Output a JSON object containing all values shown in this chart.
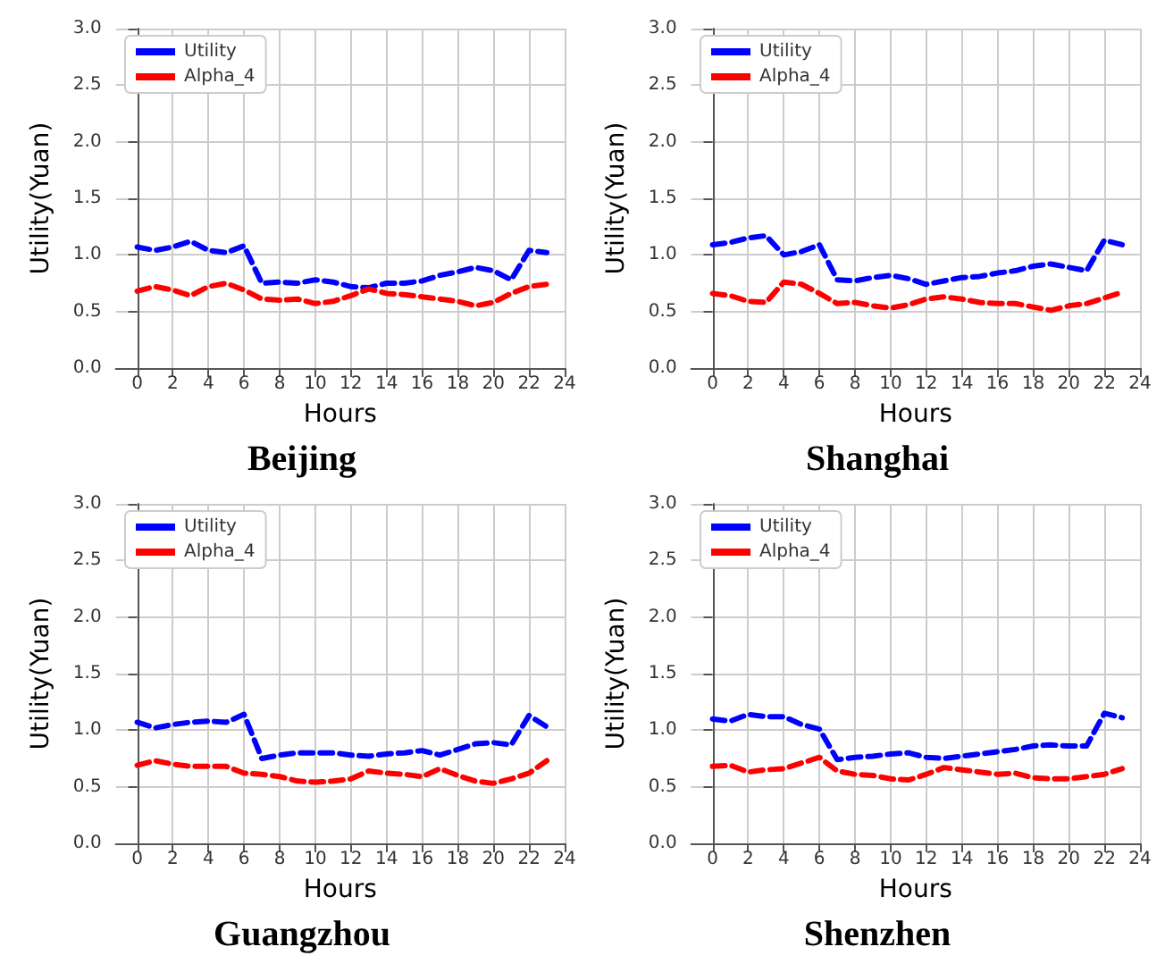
{
  "chart_data": [
    {
      "type": "line",
      "title": "Beijing",
      "xlabel": "Hours",
      "ylabel": "Utility(Yuan)",
      "x": [
        0,
        1,
        2,
        3,
        4,
        5,
        6,
        7,
        8,
        9,
        10,
        11,
        12,
        13,
        14,
        15,
        16,
        17,
        18,
        19,
        20,
        21,
        22,
        23
      ],
      "xlim": [
        -1.2,
        24
      ],
      "xticks": [
        0,
        2,
        4,
        6,
        8,
        10,
        12,
        14,
        16,
        18,
        20,
        22,
        24
      ],
      "ylim": [
        0,
        3
      ],
      "yticks": [
        {
          "value": 0,
          "label": "0.0"
        },
        {
          "value": 0.5,
          "label": "0.5"
        },
        {
          "value": 1,
          "label": "1.0"
        },
        {
          "value": 1.5,
          "label": "1.5"
        },
        {
          "value": 2,
          "label": "2.0"
        },
        {
          "value": 2.5,
          "label": "2.5"
        },
        {
          "value": 3,
          "label": "3.0"
        }
      ],
      "grid": true,
      "legend": "top left",
      "line_style": "dashed",
      "marker": "none",
      "series": [
        {
          "name": "Utility",
          "color": "#0000ff",
          "values": [
            1.07,
            1.04,
            1.07,
            1.12,
            1.04,
            1.02,
            1.08,
            0.75,
            0.76,
            0.75,
            0.78,
            0.76,
            0.72,
            0.71,
            0.75,
            0.75,
            0.77,
            0.82,
            0.85,
            0.89,
            0.86,
            0.78,
            1.04,
            1.02
          ]
        },
        {
          "name": "Alpha_4",
          "color": "#ff0000",
          "values": [
            0.68,
            0.72,
            0.69,
            0.64,
            0.72,
            0.75,
            0.69,
            0.61,
            0.6,
            0.61,
            0.57,
            0.59,
            0.64,
            0.7,
            0.66,
            0.65,
            0.63,
            0.61,
            0.59,
            0.55,
            0.58,
            0.66,
            0.72,
            0.74
          ]
        }
      ]
    },
    {
      "type": "line",
      "title": "Shanghai",
      "xlabel": "Hours",
      "ylabel": "Utility(Yuan)",
      "x": [
        0,
        1,
        2,
        3,
        4,
        5,
        6,
        7,
        8,
        9,
        10,
        11,
        12,
        13,
        14,
        15,
        16,
        17,
        18,
        19,
        20,
        21,
        22,
        23
      ],
      "xlim": [
        -1.2,
        24
      ],
      "xticks": [
        0,
        2,
        4,
        6,
        8,
        10,
        12,
        14,
        16,
        18,
        20,
        22,
        24
      ],
      "ylim": [
        0,
        3
      ],
      "yticks": [
        {
          "value": 0,
          "label": "0.0"
        },
        {
          "value": 0.5,
          "label": "0.5"
        },
        {
          "value": 1,
          "label": "1.0"
        },
        {
          "value": 1.5,
          "label": "1.5"
        },
        {
          "value": 2,
          "label": "2.0"
        },
        {
          "value": 2.5,
          "label": "2.5"
        },
        {
          "value": 3,
          "label": "3.0"
        }
      ],
      "grid": true,
      "legend": "top left",
      "line_style": "dashed",
      "marker": "none",
      "series": [
        {
          "name": "Utility",
          "color": "#0000ff",
          "values": [
            1.09,
            1.11,
            1.15,
            1.17,
            1.0,
            1.03,
            1.09,
            0.78,
            0.77,
            0.8,
            0.82,
            0.79,
            0.74,
            0.77,
            0.8,
            0.81,
            0.84,
            0.86,
            0.9,
            0.92,
            0.89,
            0.86,
            1.13,
            1.09
          ]
        },
        {
          "name": "Alpha_4",
          "color": "#ff0000",
          "values": [
            0.66,
            0.64,
            0.59,
            0.58,
            0.76,
            0.74,
            0.66,
            0.57,
            0.58,
            0.55,
            0.53,
            0.56,
            0.61,
            0.63,
            0.61,
            0.58,
            0.57,
            0.57,
            0.54,
            0.51,
            0.55,
            0.57,
            0.62,
            0.67
          ]
        }
      ]
    },
    {
      "type": "line",
      "title": "Guangzhou",
      "xlabel": "Hours",
      "ylabel": "Utility(Yuan)",
      "x": [
        0,
        1,
        2,
        3,
        4,
        5,
        6,
        7,
        8,
        9,
        10,
        11,
        12,
        13,
        14,
        15,
        16,
        17,
        18,
        19,
        20,
        21,
        22,
        23
      ],
      "xlim": [
        -1.2,
        24
      ],
      "xticks": [
        0,
        2,
        4,
        6,
        8,
        10,
        12,
        14,
        16,
        18,
        20,
        22,
        24
      ],
      "ylim": [
        0,
        3
      ],
      "yticks": [
        {
          "value": 0,
          "label": "0.0"
        },
        {
          "value": 0.5,
          "label": "0.5"
        },
        {
          "value": 1,
          "label": "1.0"
        },
        {
          "value": 1.5,
          "label": "1.5"
        },
        {
          "value": 2,
          "label": "2.0"
        },
        {
          "value": 2.5,
          "label": "2.5"
        },
        {
          "value": 3,
          "label": "3.0"
        }
      ],
      "grid": true,
      "legend": "top left",
      "line_style": "dashed",
      "marker": "none",
      "series": [
        {
          "name": "Utility",
          "color": "#0000ff",
          "values": [
            1.07,
            1.02,
            1.05,
            1.07,
            1.08,
            1.07,
            1.14,
            0.75,
            0.78,
            0.8,
            0.8,
            0.8,
            0.78,
            0.77,
            0.79,
            0.8,
            0.82,
            0.78,
            0.83,
            0.88,
            0.89,
            0.87,
            1.13,
            1.03
          ]
        },
        {
          "name": "Alpha_4",
          "color": "#ff0000",
          "values": [
            0.69,
            0.73,
            0.7,
            0.68,
            0.68,
            0.68,
            0.62,
            0.61,
            0.59,
            0.55,
            0.54,
            0.55,
            0.57,
            0.64,
            0.62,
            0.61,
            0.59,
            0.66,
            0.6,
            0.55,
            0.53,
            0.57,
            0.62,
            0.73
          ]
        }
      ]
    },
    {
      "type": "line",
      "title": "Shenzhen",
      "xlabel": "Hours",
      "ylabel": "Utility(Yuan)",
      "x": [
        0,
        1,
        2,
        3,
        4,
        5,
        6,
        7,
        8,
        9,
        10,
        11,
        12,
        13,
        14,
        15,
        16,
        17,
        18,
        19,
        20,
        21,
        22,
        23
      ],
      "xlim": [
        -1.2,
        24
      ],
      "xticks": [
        0,
        2,
        4,
        6,
        8,
        10,
        12,
        14,
        16,
        18,
        20,
        22,
        24
      ],
      "ylim": [
        0,
        3
      ],
      "yticks": [
        {
          "value": 0,
          "label": "0.0"
        },
        {
          "value": 0.5,
          "label": "0.5"
        },
        {
          "value": 1,
          "label": "1.0"
        },
        {
          "value": 1.5,
          "label": "1.5"
        },
        {
          "value": 2,
          "label": "2.0"
        },
        {
          "value": 2.5,
          "label": "2.5"
        },
        {
          "value": 3,
          "label": "3.0"
        }
      ],
      "grid": true,
      "legend": "top left",
      "line_style": "dashed",
      "marker": "none",
      "series": [
        {
          "name": "Utility",
          "color": "#0000ff",
          "values": [
            1.1,
            1.08,
            1.14,
            1.12,
            1.12,
            1.05,
            1.01,
            0.74,
            0.76,
            0.77,
            0.79,
            0.8,
            0.76,
            0.75,
            0.77,
            0.79,
            0.81,
            0.83,
            0.86,
            0.87,
            0.86,
            0.86,
            1.15,
            1.11
          ]
        },
        {
          "name": "Alpha_4",
          "color": "#ff0000",
          "values": [
            0.68,
            0.69,
            0.63,
            0.65,
            0.66,
            0.71,
            0.76,
            0.64,
            0.61,
            0.6,
            0.57,
            0.56,
            0.61,
            0.67,
            0.65,
            0.63,
            0.61,
            0.62,
            0.58,
            0.57,
            0.57,
            0.59,
            0.61,
            0.66
          ]
        }
      ]
    }
  ]
}
